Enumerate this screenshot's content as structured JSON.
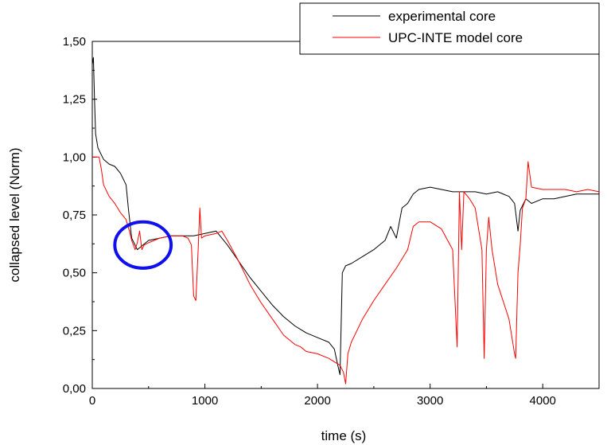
{
  "chart_data": {
    "type": "line",
    "title": "",
    "xlabel": "time (s)",
    "ylabel": "collapsed level (Norm)",
    "xlim": [
      0,
      4500
    ],
    "ylim": [
      0,
      1.5
    ],
    "xticks": [
      0,
      1000,
      2000,
      3000,
      4000
    ],
    "xtick_labels": [
      "0",
      "1000",
      "2000",
      "3000",
      "4000"
    ],
    "yticks": [
      0,
      0.25,
      0.5,
      0.75,
      1.0,
      1.25,
      1.5
    ],
    "ytick_labels": [
      "0,00",
      "0,25",
      "0,50",
      "0,75",
      "1,00",
      "1,25",
      "1,50"
    ],
    "grid": false,
    "legend_position": "top-right",
    "series": [
      {
        "name": "experimental core",
        "color": "#000000",
        "x": [
          0,
          10,
          20,
          30,
          50,
          80,
          100,
          150,
          200,
          250,
          300,
          320,
          350,
          400,
          450,
          500,
          600,
          700,
          800,
          900,
          1000,
          1100,
          1200,
          1300,
          1400,
          1500,
          1600,
          1700,
          1800,
          1900,
          2000,
          2100,
          2150,
          2180,
          2200,
          2220,
          2250,
          2300,
          2400,
          2500,
          2550,
          2600,
          2650,
          2700,
          2750,
          2800,
          2850,
          2900,
          3000,
          3100,
          3200,
          3300,
          3400,
          3500,
          3600,
          3700,
          3750,
          3780,
          3800,
          3850,
          3900,
          4000,
          4100,
          4200,
          4300,
          4400,
          4500
        ],
        "y": [
          1.4,
          1.43,
          1.25,
          1.1,
          1.04,
          1.01,
          0.99,
          0.97,
          0.96,
          0.93,
          0.88,
          0.78,
          0.65,
          0.6,
          0.62,
          0.64,
          0.65,
          0.66,
          0.66,
          0.66,
          0.67,
          0.68,
          0.62,
          0.55,
          0.48,
          0.42,
          0.36,
          0.31,
          0.27,
          0.24,
          0.22,
          0.2,
          0.17,
          0.1,
          0.06,
          0.5,
          0.53,
          0.54,
          0.57,
          0.6,
          0.62,
          0.64,
          0.7,
          0.65,
          0.78,
          0.8,
          0.84,
          0.86,
          0.87,
          0.86,
          0.85,
          0.85,
          0.85,
          0.84,
          0.85,
          0.83,
          0.8,
          0.68,
          0.77,
          0.82,
          0.8,
          0.82,
          0.82,
          0.83,
          0.84,
          0.84,
          0.84
        ]
      },
      {
        "name": "UPC-INTE model core",
        "color": "#ff0000",
        "x": [
          0,
          20,
          40,
          60,
          80,
          100,
          150,
          200,
          250,
          300,
          330,
          350,
          380,
          400,
          420,
          440,
          460,
          500,
          550,
          600,
          700,
          800,
          850,
          880,
          900,
          920,
          940,
          955,
          970,
          1000,
          1100,
          1150,
          1200,
          1300,
          1400,
          1500,
          1600,
          1700,
          1800,
          1850,
          1900,
          2000,
          2100,
          2200,
          2230,
          2250,
          2270,
          2300,
          2400,
          2500,
          2600,
          2700,
          2800,
          2850,
          2900,
          3000,
          3100,
          3200,
          3240,
          3260,
          3280,
          3300,
          3350,
          3400,
          3460,
          3480,
          3500,
          3520,
          3550,
          3600,
          3700,
          3750,
          3760,
          3780,
          3800,
          3820,
          3850,
          3870,
          3900,
          4000,
          4100,
          4200,
          4300,
          4400,
          4500
        ],
        "y": [
          1.0,
          1.0,
          1.0,
          1.0,
          0.95,
          0.88,
          0.83,
          0.8,
          0.76,
          0.73,
          0.68,
          0.64,
          0.6,
          0.63,
          0.68,
          0.6,
          0.62,
          0.63,
          0.64,
          0.65,
          0.66,
          0.66,
          0.65,
          0.62,
          0.4,
          0.38,
          0.6,
          0.78,
          0.65,
          0.66,
          0.67,
          0.68,
          0.64,
          0.55,
          0.45,
          0.37,
          0.3,
          0.23,
          0.19,
          0.18,
          0.16,
          0.15,
          0.13,
          0.1,
          0.07,
          0.02,
          0.15,
          0.2,
          0.3,
          0.38,
          0.45,
          0.52,
          0.6,
          0.7,
          0.72,
          0.72,
          0.69,
          0.6,
          0.18,
          0.85,
          0.6,
          0.85,
          0.82,
          0.78,
          0.6,
          0.13,
          0.6,
          0.74,
          0.6,
          0.45,
          0.3,
          0.15,
          0.13,
          0.5,
          0.62,
          0.78,
          0.82,
          0.98,
          0.87,
          0.86,
          0.86,
          0.86,
          0.85,
          0.86,
          0.85
        ]
      }
    ],
    "annotations": [
      {
        "shape": "ellipse",
        "color": "#1010ee",
        "cx": 450,
        "cy": 0.62,
        "rx": 250,
        "ry": 0.1
      }
    ]
  }
}
